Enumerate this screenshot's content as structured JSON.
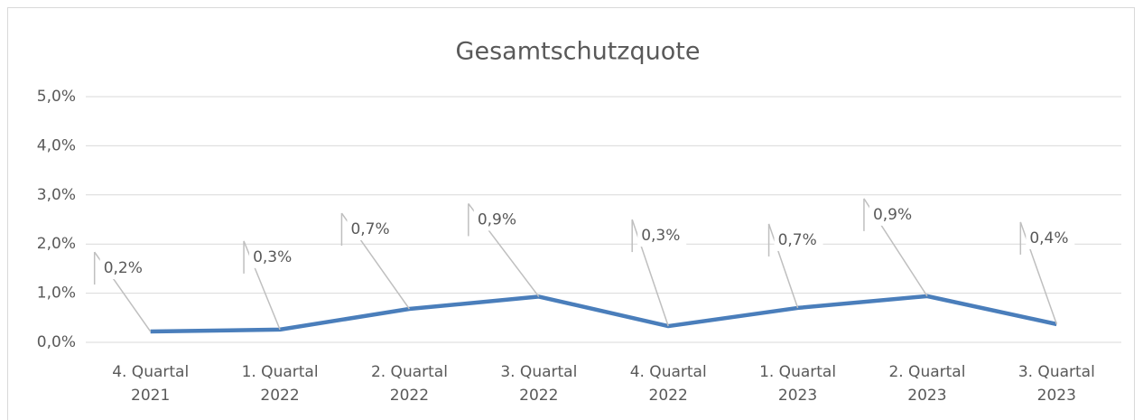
{
  "chart_data": {
    "type": "line",
    "title": "Gesamtschutzquote",
    "categories": [
      "4. Quartal 2021",
      "1. Quartal 2022",
      "2. Quartal 2022",
      "3. Quartal 2022",
      "4. Quartal 2022",
      "1. Quartal 2023",
      "2. Quartal 2023",
      "3. Quartal 2023"
    ],
    "series": [
      {
        "name": "Gesamtschutzquote",
        "color": "#4a7ebb",
        "values": [
          0.22,
          0.26,
          0.68,
          0.93,
          0.33,
          0.7,
          0.94,
          0.37
        ],
        "value_labels": [
          "0,2%",
          "0,3%",
          "0,7%",
          "0,9%",
          "0,3%",
          "0,7%",
          "0,9%",
          "0,4%"
        ]
      }
    ],
    "ylim": [
      0,
      5
    ],
    "yticks": [
      {
        "value": 0,
        "label": "0,0%"
      },
      {
        "value": 1,
        "label": "1,0%"
      },
      {
        "value": 2,
        "label": "2,0%"
      },
      {
        "value": 3,
        "label": "3,0%"
      },
      {
        "value": 4,
        "label": "4,0%"
      },
      {
        "value": 5,
        "label": "5,0%"
      }
    ],
    "grid": true
  }
}
